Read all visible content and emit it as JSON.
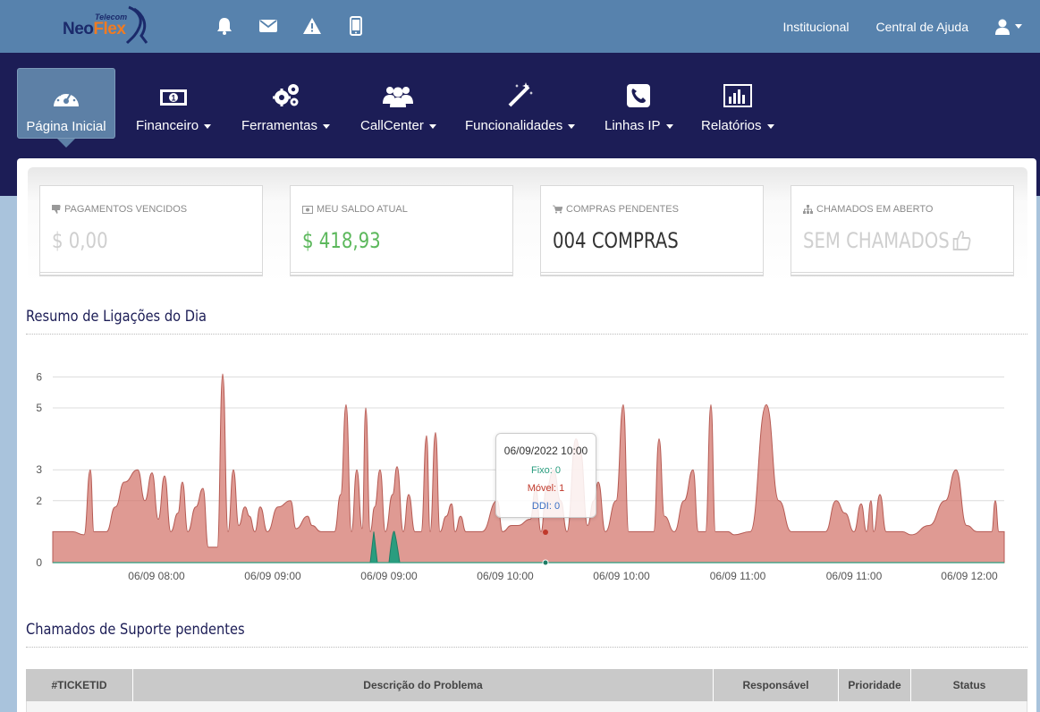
{
  "brand": {
    "telecom": "Telecom",
    "neo": "Neo",
    "flex": "Flex"
  },
  "topbar": {
    "icons": [
      "bell-icon",
      "envelope-icon",
      "warning-icon",
      "mobile-icon"
    ],
    "links": {
      "institucional": "Institucional",
      "central_ajuda": "Central de Ajuda"
    }
  },
  "nav": {
    "items": [
      {
        "label": "Página Inicial",
        "icon": "dashboard-icon",
        "active": true
      },
      {
        "label": "Financeiro",
        "icon": "money-icon"
      },
      {
        "label": "Ferramentas",
        "icon": "cogs-icon"
      },
      {
        "label": "CallCenter",
        "icon": "users-icon"
      },
      {
        "label": "Funcionalidades",
        "icon": "magic-icon"
      },
      {
        "label": "Linhas IP",
        "icon": "phone-icon"
      },
      {
        "label": "Relatórios",
        "icon": "bar-chart-icon"
      }
    ]
  },
  "stats": [
    {
      "title": "PAGAMENTOS VENCIDOS",
      "value": "$ 0,00",
      "icon": "thumbs-down-icon",
      "color": "#cfcfcf"
    },
    {
      "title": "MEU SALDO ATUAL",
      "value": "$ 418,93",
      "icon": "money-icon",
      "color": "#5cb85c"
    },
    {
      "title": "COMPRAS PENDENTES",
      "value": "004 COMPRAS",
      "icon": "cart-icon",
      "color": "#333333"
    },
    {
      "title": "CHAMADOS EM ABERTO",
      "value": "SEM CHAMADOS",
      "icon": "sitemap-icon",
      "color": "#cfcfcf"
    }
  ],
  "sections": {
    "calls_title": "Resumo de Ligações do Dia",
    "tickets_title": "Chamados de Suporte pendentes"
  },
  "chart_data": {
    "type": "area",
    "title": "",
    "y_ticks": [
      "0",
      "2",
      "3",
      "5",
      "6"
    ],
    "ylim": [
      0,
      6
    ],
    "grid": true,
    "x_tick_labels": [
      "06/09 08:00",
      "06/09 09:00",
      "06/09 09:00",
      "06/09 10:00",
      "06/09 10:00",
      "06/09 11:00",
      "06/09 11:00",
      "06/09 12:00"
    ],
    "series": [
      {
        "name": "Fixo",
        "color": "#2a9d7f"
      },
      {
        "name": "Móvel",
        "color": "#d2736a"
      },
      {
        "name": "DDI",
        "color": "#3a6fc4"
      }
    ],
    "tooltip": {
      "title": "06/09/2022 10:00",
      "fixo": "Fixo: 0",
      "movel": "Móvel: 1",
      "ddi": "DDI: 0"
    }
  },
  "table": {
    "columns": [
      "#TICKETID",
      "Descrição do Problema",
      "Responsável",
      "Prioridade",
      "Status"
    ]
  }
}
